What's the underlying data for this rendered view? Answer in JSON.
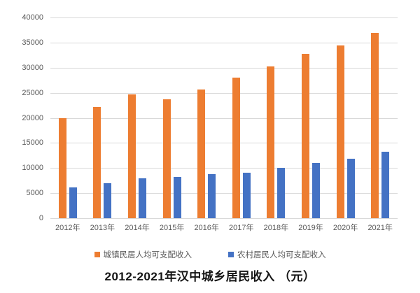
{
  "chart_data": {
    "type": "bar",
    "title": "2012-2021年汉中城乡居民收入 （元）",
    "xlabel": "",
    "ylabel": "",
    "categories": [
      "2012年",
      "2013年",
      "2014年",
      "2015年",
      "2016年",
      "2017年",
      "2018年",
      "2019年",
      "2020年",
      "2021年"
    ],
    "series": [
      {
        "key": "urban",
        "name": "城镇民居人均可支配收入",
        "color": "#ED7D31",
        "values": [
          19900,
          22100,
          24600,
          23700,
          25700,
          28000,
          30200,
          32800,
          34400,
          37000
        ]
      },
      {
        "key": "rural",
        "name": "农村居民人均可支配收入",
        "color": "#4472C4",
        "values": [
          6100,
          7000,
          7900,
          8200,
          8800,
          9000,
          10000,
          11000,
          11800,
          13200
        ]
      }
    ],
    "ylim": [
      0,
      40000
    ],
    "yticks": [
      0,
      5000,
      10000,
      15000,
      20000,
      25000,
      30000,
      35000,
      40000
    ],
    "grid": true,
    "legend_position": "bottom"
  },
  "style_colors": {
    "background": "#FFFFFF",
    "gridline": "#D9D9D9",
    "axis_text": "#595959",
    "title_text": "#141414"
  }
}
